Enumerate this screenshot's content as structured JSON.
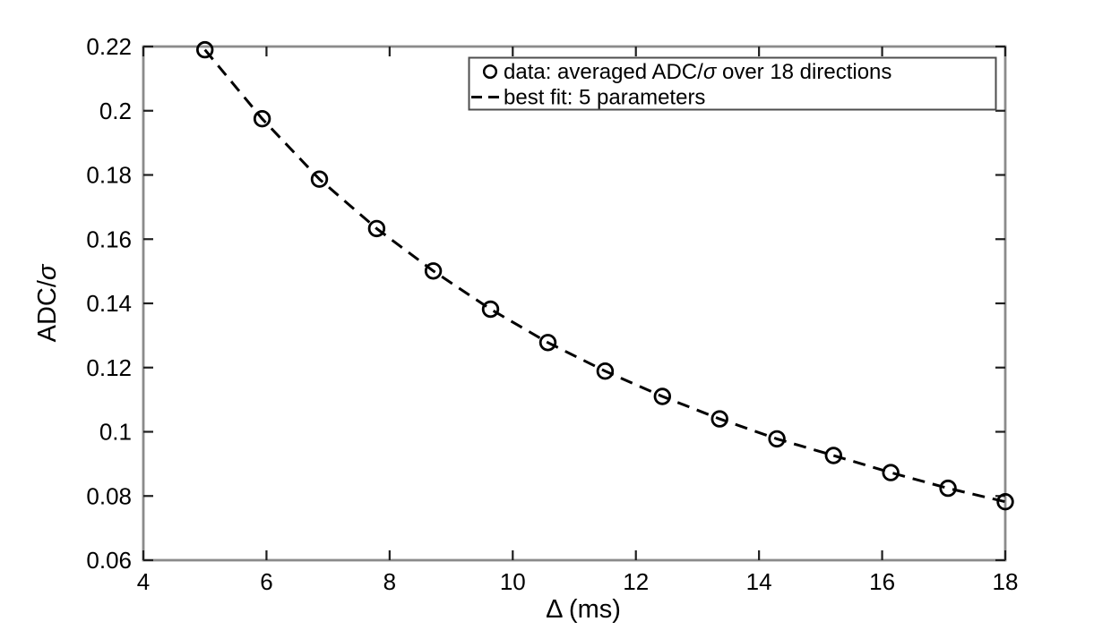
{
  "figure": {
    "background": "#ffffff",
    "frame_color": "#8b8b8b",
    "tick_color": "#1f1f1f",
    "text_color": "#000000",
    "series_color": "#000000"
  },
  "chart_data": {
    "type": "scatter",
    "title": "",
    "xlabel": "Δ (ms)",
    "ylabel": "ADC/σ",
    "xlim": [
      4,
      18
    ],
    "ylim": [
      0.06,
      0.22
    ],
    "xticks": {
      "values": [
        4,
        6,
        8,
        10,
        12,
        14,
        16,
        18
      ],
      "labels": [
        "4",
        "6",
        "8",
        "10",
        "12",
        "14",
        "16",
        "18"
      ]
    },
    "yticks": {
      "values": [
        0.06,
        0.08,
        0.1,
        0.12,
        0.14,
        0.16,
        0.18,
        0.2,
        0.22
      ],
      "labels": [
        "0.06",
        "0.08",
        "0.1",
        "0.12",
        "0.14",
        "0.16",
        "0.18",
        "0.2",
        "0.22"
      ]
    },
    "grid": false,
    "legend_position": "upper-right-inside",
    "series": [
      {
        "name": "data: averaged ADC/σ over 18 directions",
        "type": "scatter",
        "marker": "open-circle",
        "line": "none",
        "x": [
          5,
          5.93,
          6.86,
          7.79,
          8.71,
          9.64,
          10.57,
          11.5,
          12.43,
          13.36,
          14.29,
          15.21,
          16.14,
          17.07,
          18
        ],
        "y": [
          0.219,
          0.1975,
          0.1787,
          0.1633,
          0.1501,
          0.1382,
          0.1278,
          0.1189,
          0.111,
          0.104,
          0.0978,
          0.0926,
          0.0873,
          0.0824,
          0.0782
        ]
      },
      {
        "name": "best fit: 5 parameters",
        "type": "line",
        "marker": "none",
        "line": "dashed",
        "x": [
          5,
          5.93,
          6.86,
          7.79,
          8.71,
          9.64,
          10.57,
          11.5,
          12.43,
          13.36,
          14.29,
          15.21,
          16.14,
          17.07,
          18
        ],
        "y": [
          0.219,
          0.1975,
          0.1787,
          0.1633,
          0.1501,
          0.1382,
          0.1278,
          0.1189,
          0.111,
          0.104,
          0.0978,
          0.0926,
          0.0873,
          0.0824,
          0.0782
        ]
      }
    ]
  }
}
